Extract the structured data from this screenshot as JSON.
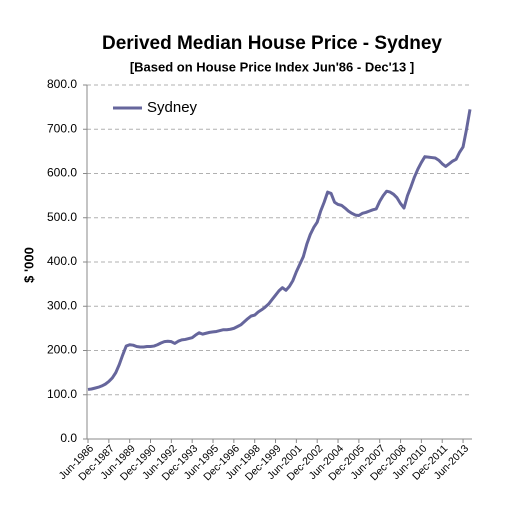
{
  "chart_data": {
    "type": "line",
    "title": "Derived Median House Price - Sydney",
    "subtitle": "[Based on House Price Index Jun'86 - Dec'13 ]",
    "y_label": "$ '000",
    "categories": [
      "Jun-1986",
      null,
      null,
      null,
      null,
      null,
      "Dec-1987",
      null,
      null,
      null,
      null,
      null,
      "Jun-1989",
      null,
      null,
      null,
      null,
      null,
      "Dec-1990",
      null,
      null,
      null,
      null,
      null,
      "Jun-1992",
      null,
      null,
      null,
      null,
      null,
      "Dec-1993",
      null,
      null,
      null,
      null,
      null,
      "Jun-1995",
      null,
      null,
      null,
      null,
      null,
      "Dec-1996",
      null,
      null,
      null,
      null,
      null,
      "Jun-1998",
      null,
      null,
      null,
      null,
      null,
      "Dec-1999",
      null,
      null,
      null,
      null,
      null,
      "Jun-2001",
      null,
      null,
      null,
      null,
      null,
      "Dec-2002",
      null,
      null,
      null,
      null,
      null,
      "Jun-2004",
      null,
      null,
      null,
      null,
      null,
      "Dec-2005",
      null,
      null,
      null,
      null,
      null,
      "Jun-2007",
      null,
      null,
      null,
      null,
      null,
      "Dec-2008",
      null,
      null,
      null,
      null,
      null,
      "Jun-2010",
      null,
      null,
      null,
      null,
      null,
      "Dec-2011",
      null,
      null,
      null,
      null,
      null,
      "Jun-2013",
      null,
      null
    ],
    "series": [
      {
        "name": "Sydney",
        "color": "#66669c",
        "values": [
          112,
          113,
          115,
          117,
          120,
          124,
          130,
          138,
          150,
          168,
          190,
          210,
          213,
          212,
          209,
          208,
          208,
          209,
          209,
          210,
          213,
          217,
          220,
          221,
          220,
          216,
          221,
          224,
          225,
          227,
          229,
          235,
          240,
          237,
          239,
          241,
          242,
          243,
          245,
          247,
          247,
          248,
          250,
          254,
          258,
          265,
          272,
          278,
          280,
          287,
          292,
          298,
          305,
          315,
          325,
          335,
          342,
          336,
          345,
          358,
          378,
          395,
          412,
          440,
          462,
          478,
          490,
          515,
          535,
          558,
          555,
          535,
          530,
          528,
          522,
          515,
          510,
          506,
          505,
          510,
          512,
          515,
          518,
          520,
          537,
          550,
          560,
          558,
          553,
          545,
          532,
          522,
          550,
          570,
          592,
          610,
          625,
          638,
          637,
          636,
          635,
          630,
          622,
          616,
          622,
          628,
          632,
          648,
          660,
          700,
          745
        ]
      }
    ],
    "ylim": [
      0,
      800
    ],
    "yticks": [
      {
        "value": 0,
        "label": "0.0"
      },
      {
        "value": 100,
        "label": "100.0"
      },
      {
        "value": 200,
        "label": "200.0"
      },
      {
        "value": 300,
        "label": "300.0"
      },
      {
        "value": 400,
        "label": "400.0"
      },
      {
        "value": 500,
        "label": "500.0"
      },
      {
        "value": 600,
        "label": "600.0"
      },
      {
        "value": 700,
        "label": "700.0"
      },
      {
        "value": 800,
        "label": "800.0"
      }
    ],
    "grid": true,
    "legend": "top-left"
  }
}
